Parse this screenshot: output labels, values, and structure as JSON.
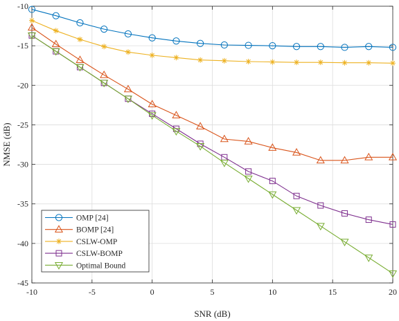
{
  "chart_data": {
    "type": "line",
    "xlabel": "SNR (dB)",
    "ylabel": "NMSE (dB)",
    "xlim": [
      -10,
      20
    ],
    "ylim": [
      -45,
      -10
    ],
    "xticks": [
      -10,
      -5,
      0,
      5,
      10,
      15,
      20
    ],
    "yticks": [
      -10,
      -15,
      -20,
      -25,
      -30,
      -35,
      -40,
      -45
    ],
    "grid": true,
    "legend_position": "bottom-left",
    "x": [
      -10,
      -8,
      -6,
      -4,
      -2,
      0,
      2,
      4,
      6,
      8,
      10,
      12,
      14,
      16,
      18,
      20
    ],
    "series": [
      {
        "name": "OMP [24]",
        "color": "#0072BD",
        "marker": "circle",
        "values": [
          -10.4,
          -11.2,
          -12.1,
          -12.9,
          -13.5,
          -14.0,
          -14.4,
          -14.7,
          -14.9,
          -14.95,
          -15.0,
          -15.1,
          -15.1,
          -15.2,
          -15.1,
          -15.2
        ]
      },
      {
        "name": "BOMP [24]",
        "color": "#D95319",
        "marker": "triangle-up",
        "values": [
          -12.7,
          -14.8,
          -16.8,
          -18.7,
          -20.5,
          -22.4,
          -23.8,
          -25.2,
          -26.8,
          -27.1,
          -27.9,
          -28.5,
          -29.5,
          -29.5,
          -29.1,
          -29.1
        ]
      },
      {
        "name": "CSLW-OMP",
        "color": "#EDB120",
        "marker": "asterisk",
        "values": [
          -11.8,
          -13.1,
          -14.2,
          -15.1,
          -15.8,
          -16.2,
          -16.5,
          -16.8,
          -16.9,
          -17.0,
          -17.05,
          -17.1,
          -17.1,
          -17.15,
          -17.15,
          -17.2
        ]
      },
      {
        "name": "CSLW-BOMP",
        "color": "#7E2F8E",
        "marker": "square",
        "values": [
          -13.7,
          -15.7,
          -17.7,
          -19.7,
          -21.7,
          -23.6,
          -25.5,
          -27.4,
          -29.1,
          -30.9,
          -32.1,
          -34.0,
          -35.2,
          -36.2,
          -37.0,
          -37.6
        ]
      },
      {
        "name": "Optimal Bound",
        "color": "#77AC30",
        "marker": "triangle-down",
        "values": [
          -13.7,
          -15.7,
          -17.7,
          -19.7,
          -21.7,
          -23.8,
          -25.8,
          -27.7,
          -29.8,
          -31.8,
          -33.8,
          -35.8,
          -37.8,
          -39.8,
          -41.8,
          -43.8
        ]
      }
    ]
  }
}
